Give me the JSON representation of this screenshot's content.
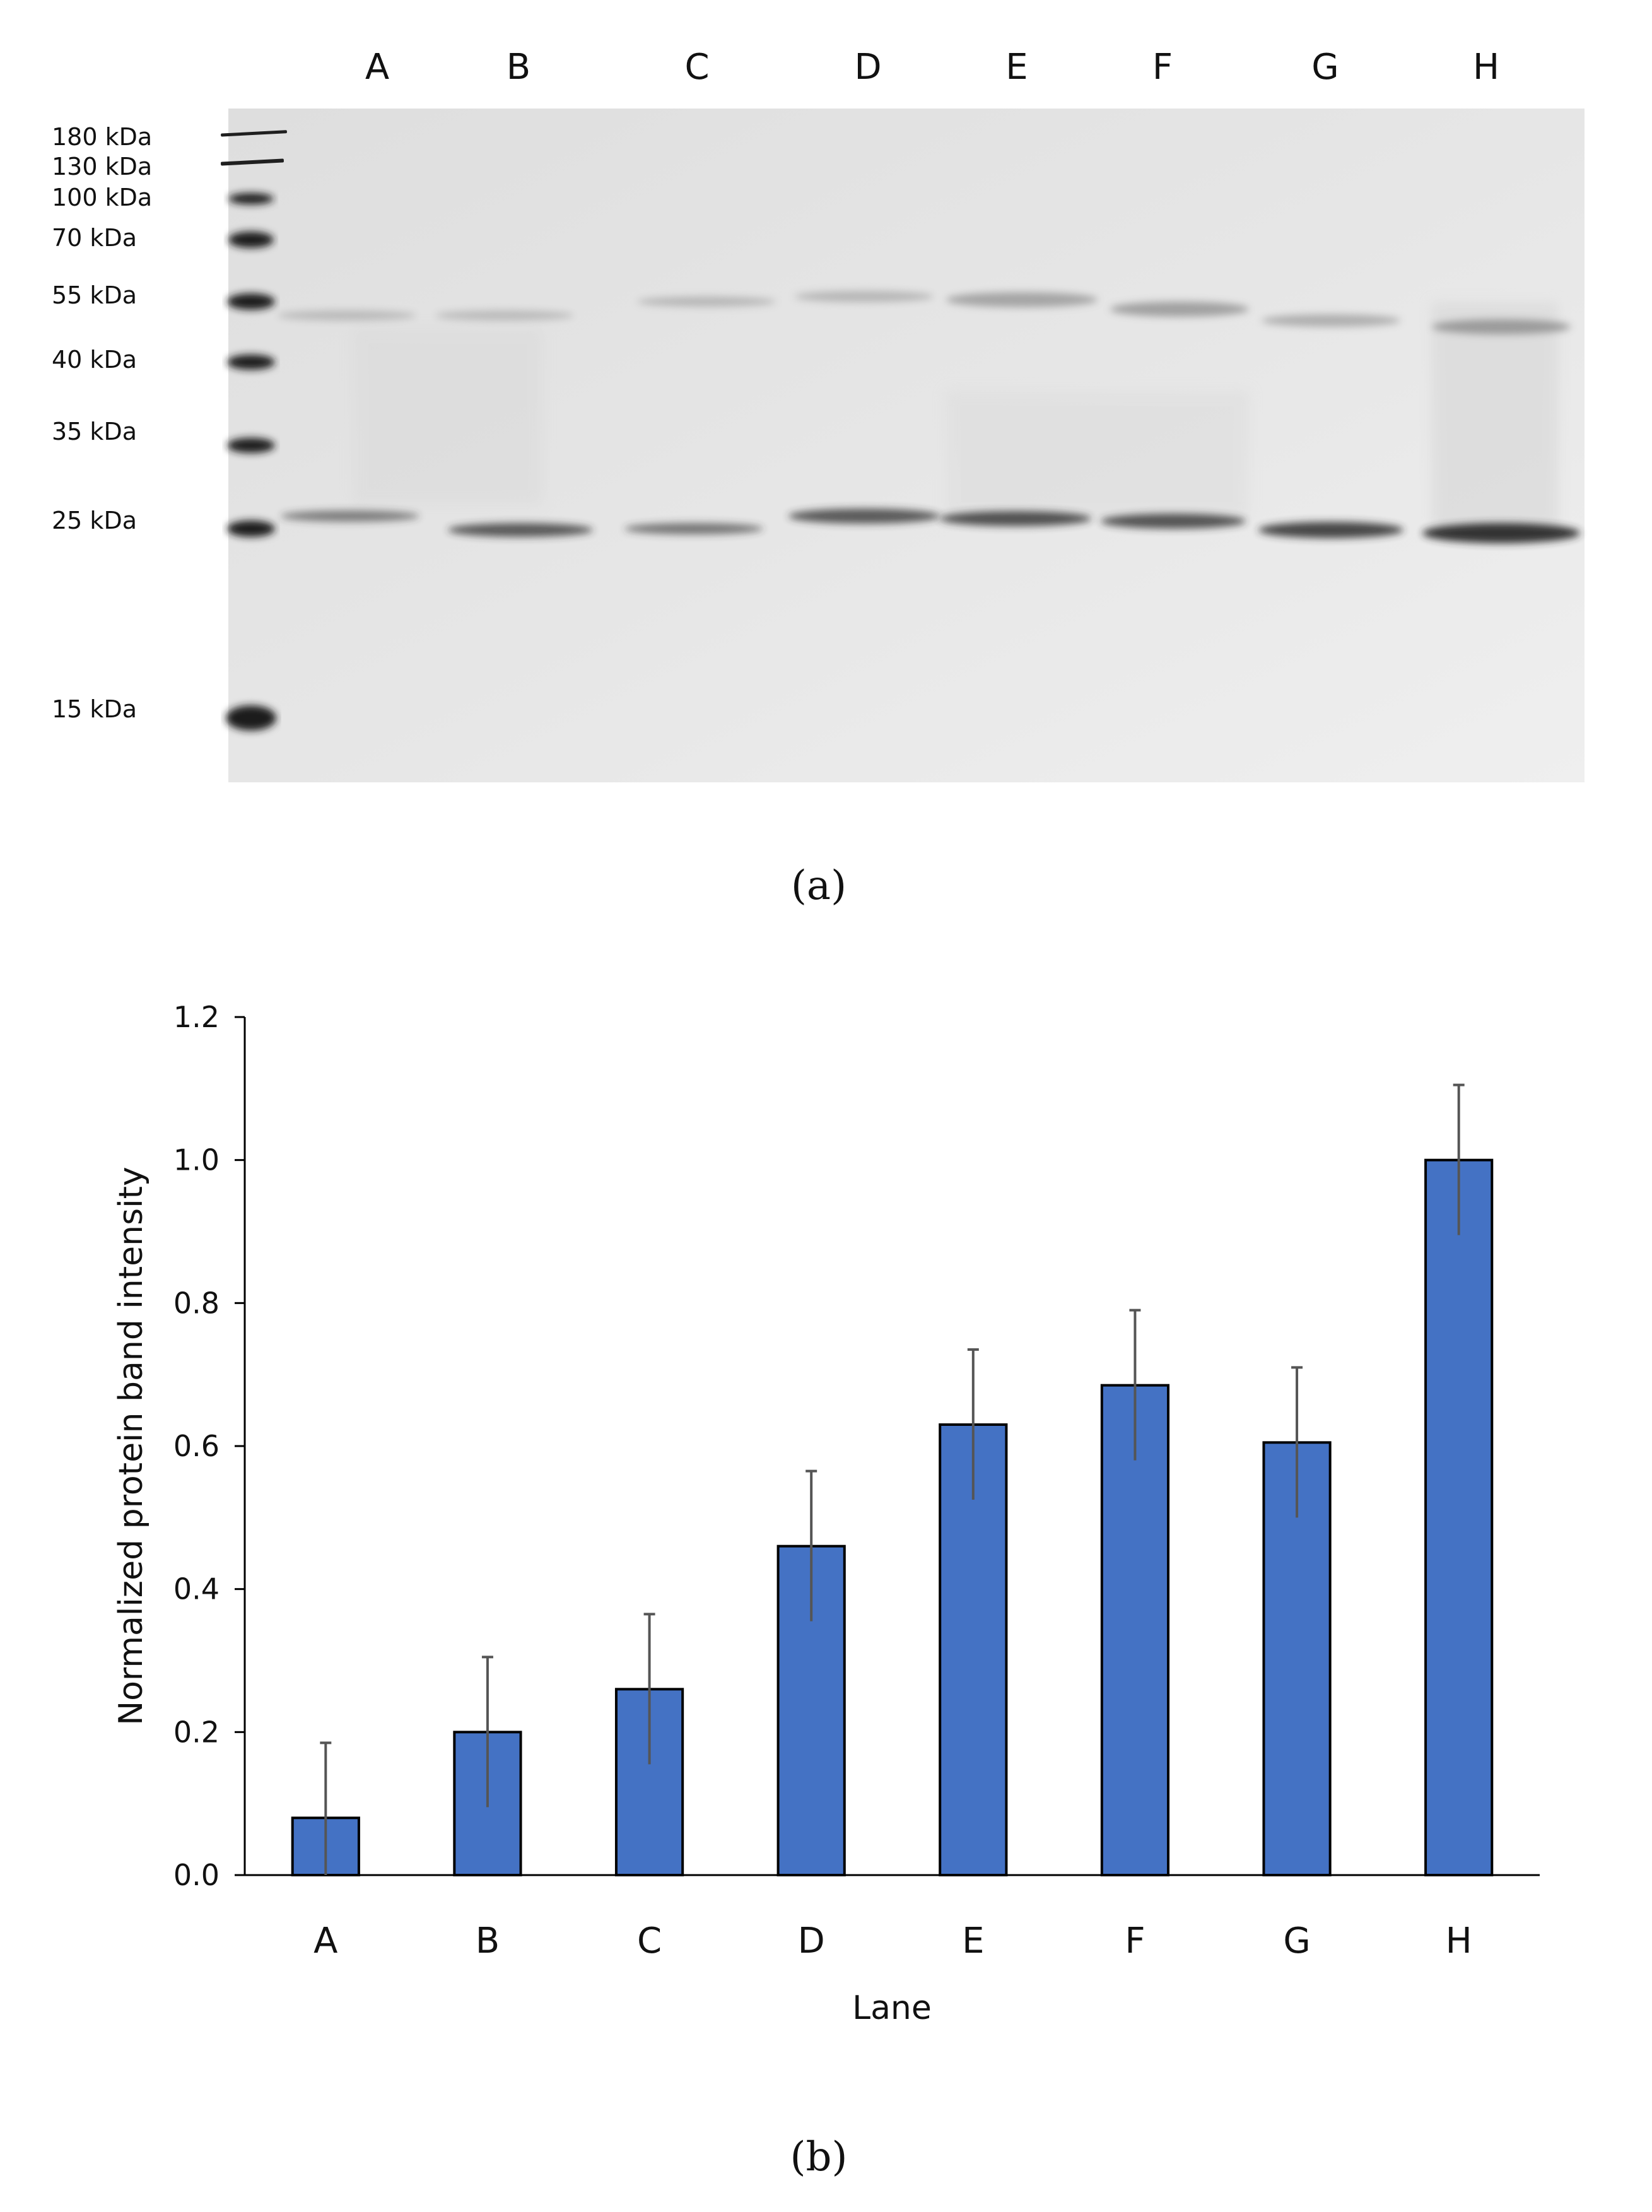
{
  "panel_a": {
    "caption": "(a)",
    "lane_labels": [
      "A",
      "B",
      "C",
      "D",
      "E",
      "F",
      "G",
      "H"
    ],
    "marker_labels": [
      "180 kDa",
      "130 kDa",
      "100 kDa",
      "70 kDa",
      "55 kDa",
      "40 kDa",
      "35 kDa",
      "25 kDa",
      "15 kDa"
    ]
  },
  "panel_b": {
    "caption": "(b)"
  },
  "chart_data": {
    "type": "bar",
    "categories": [
      "A",
      "B",
      "C",
      "D",
      "E",
      "F",
      "G",
      "H"
    ],
    "values": [
      0.08,
      0.2,
      0.26,
      0.46,
      0.63,
      0.685,
      0.605,
      1.0
    ],
    "errors": [
      0.105,
      0.105,
      0.105,
      0.105,
      0.105,
      0.105,
      0.105,
      0.105
    ],
    "xlabel": "Lane",
    "ylabel": "Normalized protein band intensity",
    "ylim": [
      0,
      1.2
    ],
    "yticks": [
      "0.0",
      "0.2",
      "0.4",
      "0.6",
      "0.8",
      "1.0",
      "1.2"
    ],
    "grid": false,
    "colors": {
      "bar_fill": "#4472c4",
      "bar_edge": "#000000",
      "error_bar": "#555555"
    }
  }
}
